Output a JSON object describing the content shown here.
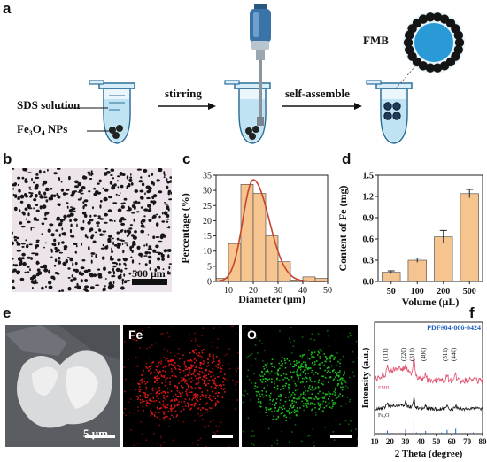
{
  "panel_labels": {
    "a": "a",
    "b": "b",
    "c": "c",
    "d": "d",
    "e": "e",
    "f": "f"
  },
  "panel_a": {
    "sds_label": "SDS solution",
    "np_label": "Fe₃O₄ NPs",
    "step1": "stirring",
    "step2": "self-assemble",
    "fmb_label": "FMB"
  },
  "panel_b": {
    "scalebar": "500 μm"
  },
  "panel_e": {
    "scalebar": "5 μm",
    "map1": "Fe",
    "map2": "O",
    "colors": {
      "Fe": "#e01818",
      "O": "#1fc21f"
    }
  },
  "chart_data": [
    {
      "panel": "c",
      "type": "bar",
      "xlabel": "Diameter (μm)",
      "ylabel": "Percentage (%)",
      "xlim": [
        5,
        50
      ],
      "ylim": [
        0,
        35
      ],
      "xticks": [
        "10",
        "20",
        "30",
        "40",
        "50"
      ],
      "yticks": [
        "0",
        "5",
        "10",
        "15",
        "20",
        "25",
        "30",
        "35"
      ],
      "bin_width": 5,
      "bin_centers": [
        7.5,
        12.5,
        17.5,
        22.5,
        27.5,
        32.5,
        37.5,
        42.5,
        47.5
      ],
      "values": [
        1,
        12.5,
        32,
        29,
        15,
        6.5,
        0.5,
        1.5,
        1
      ],
      "fit_curve": "gaussian",
      "fit_peak": [
        20,
        33.5
      ],
      "colors": {
        "bar": "#f6c48f",
        "fit": "#c8432b"
      }
    },
    {
      "panel": "d",
      "type": "bar",
      "xlabel": "Volume (μL)",
      "ylabel": "Content of Fe (mg)",
      "categories": [
        "50",
        "100",
        "200",
        "500"
      ],
      "values": [
        0.13,
        0.3,
        0.63,
        1.24
      ],
      "errors": [
        0.02,
        0.03,
        0.09,
        0.06
      ],
      "ylim": [
        0,
        1.5
      ],
      "yticks": [
        "0.0",
        "0.3",
        "0.6",
        "0.9",
        "1.2",
        "1.5"
      ],
      "colors": {
        "bar": "#f6c48f"
      }
    },
    {
      "panel": "f",
      "type": "line",
      "xlabel": "2 Theta (degree)",
      "ylabel": "Intensity (a.u.)",
      "xlim": [
        10,
        80
      ],
      "xticks": [
        "10",
        "20",
        "30",
        "40",
        "50",
        "60",
        "70",
        "80"
      ],
      "reference": "PDF#04-006-0424",
      "series": [
        {
          "name": "FMB",
          "color": "#e05070"
        },
        {
          "name": "Fe₃O₄",
          "color": "#111111"
        }
      ],
      "peaks": [
        {
          "two_theta": 30.1,
          "label": "(220)"
        },
        {
          "two_theta": 35.5,
          "label": "(311)"
        },
        {
          "two_theta": 43.1,
          "label": "(400)"
        },
        {
          "two_theta": 57.0,
          "label": "(511)"
        },
        {
          "two_theta": 62.6,
          "label": "(440)"
        },
        {
          "two_theta": 18.3,
          "label": "(111)"
        }
      ],
      "ref_lines": [
        18.3,
        30.1,
        35.5,
        37.1,
        43.1,
        53.5,
        57.0,
        62.6,
        74.0
      ],
      "ref_heights": [
        0.25,
        0.35,
        1.0,
        0.1,
        0.22,
        0.1,
        0.3,
        0.4,
        0.1
      ]
    }
  ]
}
